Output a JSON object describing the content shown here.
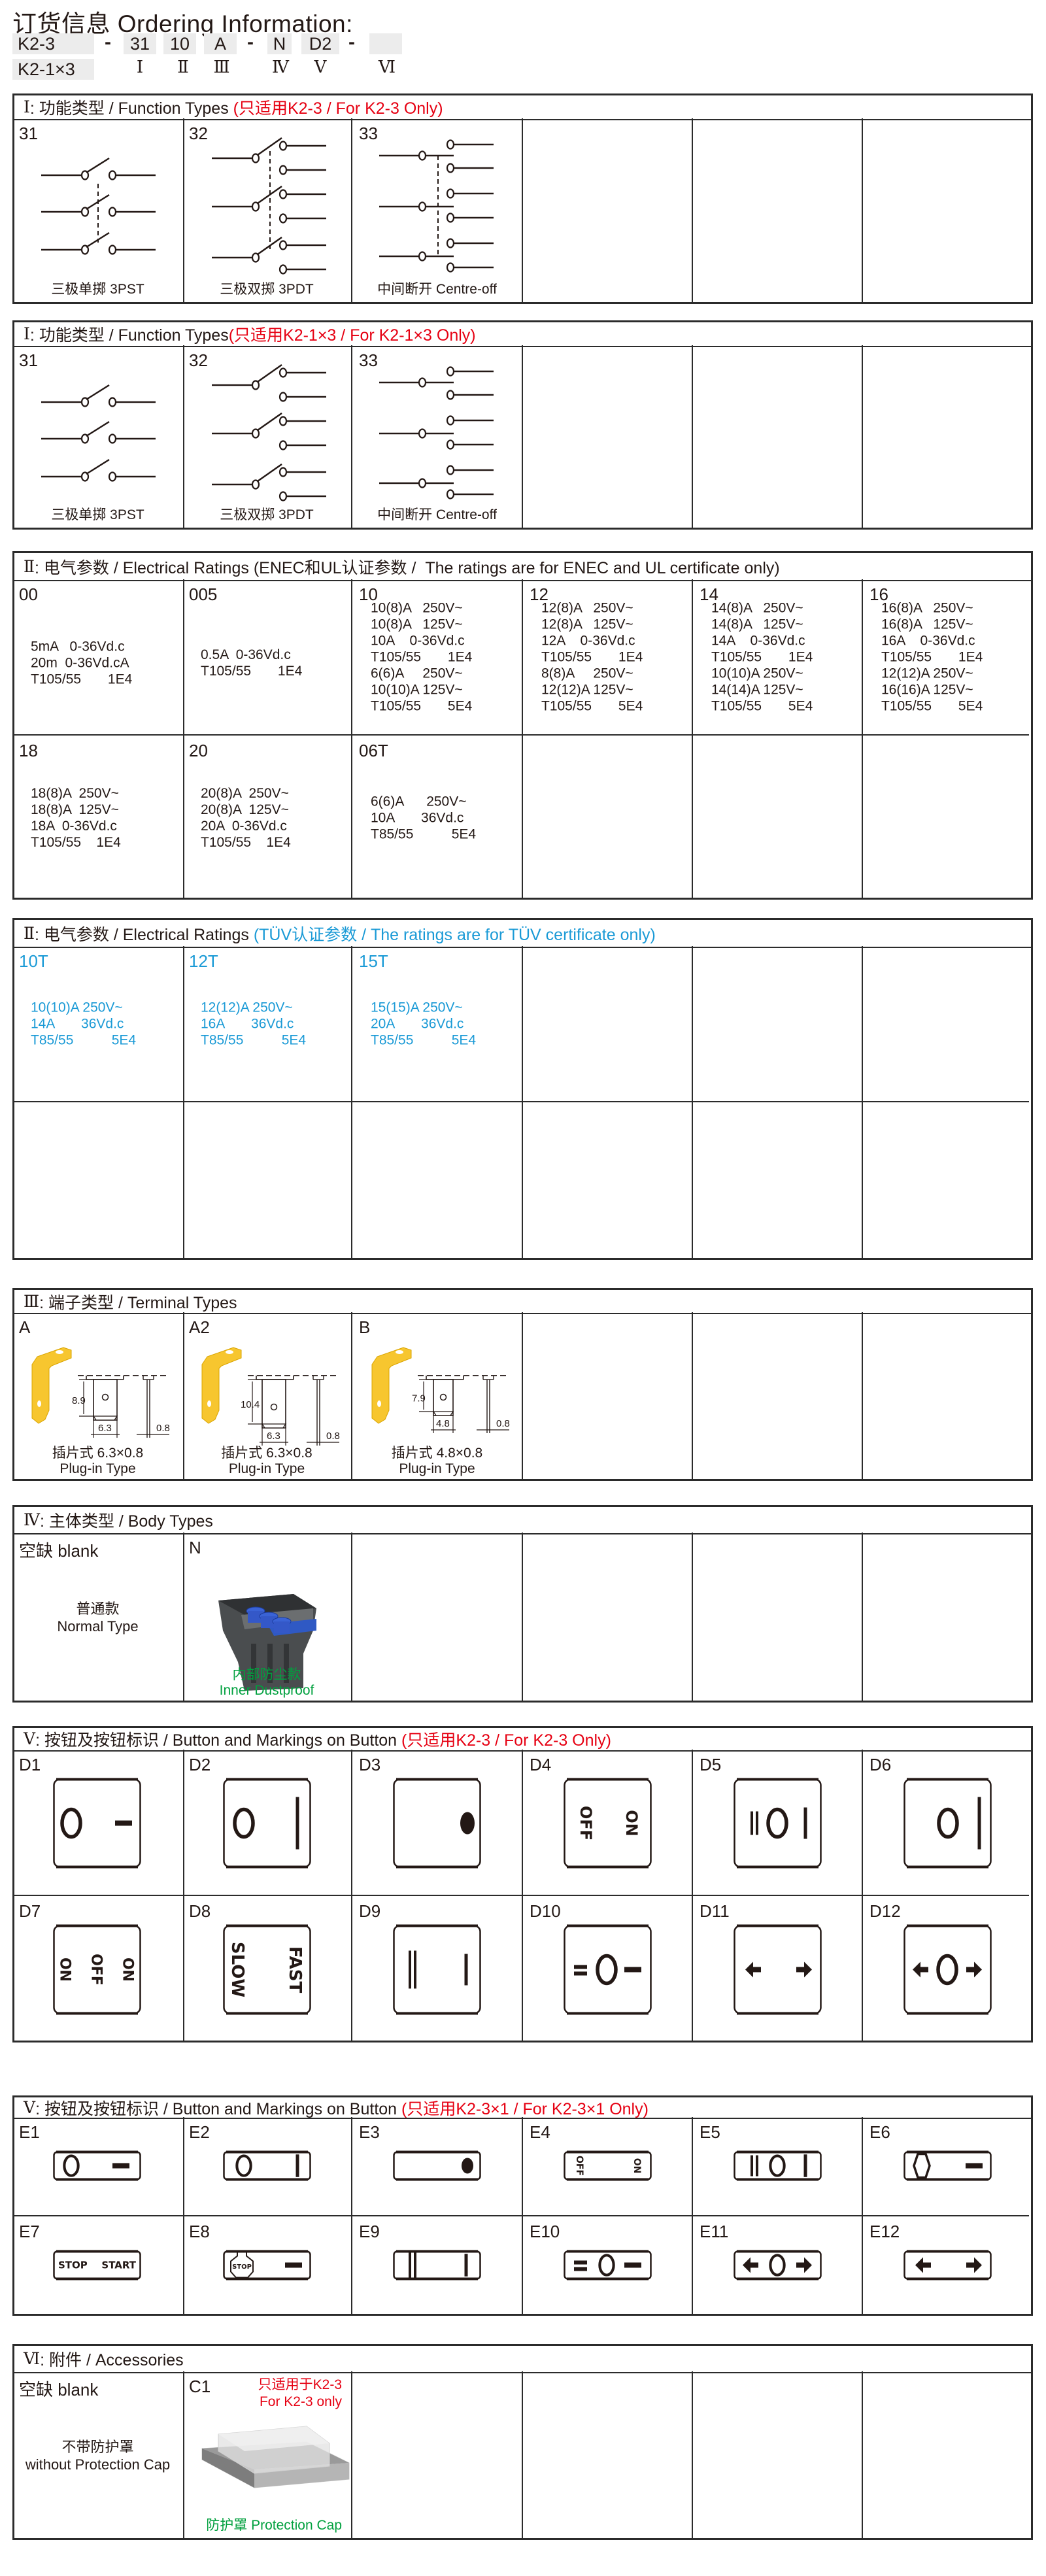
{
  "title": "订货信息 Ordering Information:",
  "colors": {
    "red": "#e60012",
    "blue": "#1a9ad6",
    "green": "#00a03e",
    "text": "#231815",
    "box": "#ececec",
    "terminal": "#f7c62f"
  },
  "order_code": {
    "series": [
      "K2-3",
      "K2-1×3"
    ],
    "separator": "-",
    "parts": [
      {
        "value": "31",
        "roman": "Ⅰ"
      },
      {
        "value": "10",
        "roman": "Ⅱ"
      },
      {
        "value": "A",
        "roman": "Ⅲ"
      },
      {
        "value": "N",
        "roman": "Ⅳ"
      },
      {
        "value": "D2",
        "roman": "Ⅴ"
      },
      {
        "value": "",
        "roman": "Ⅵ"
      }
    ]
  },
  "sections": [
    {
      "roman": "Ⅰ",
      "title": ": 功能类型 / Function Types ",
      "note": "(只适用K2-3 / For K2-3 Only)",
      "note_color": "#e60012",
      "rows": [
        [
          {
            "code": "31",
            "diagram": "3pst-diagram",
            "caption": [
              "三极单掷 3PST"
            ]
          },
          {
            "code": "32",
            "diagram": "3pdt-diagram",
            "caption": [
              "三极双掷 3PDT"
            ]
          },
          {
            "code": "33",
            "diagram": "centre-off-diagram",
            "caption": [
              "中间断开  Centre-off"
            ]
          },
          {},
          {},
          {}
        ]
      ]
    },
    {
      "roman": "Ⅰ",
      "title": ": 功能类型 / Function Types",
      "note": "(只适用K2-1×3 / For K2-1×3 Only)",
      "note_color": "#e60012",
      "rows": [
        [
          {
            "code": "31",
            "diagram": "3pst-diagram-plain",
            "caption": [
              "三极单掷 3PST"
            ]
          },
          {
            "code": "32",
            "diagram": "3pdt-diagram-plain",
            "caption": [
              "三极双掷 3PDT"
            ]
          },
          {
            "code": "33",
            "diagram": "centre-off-diagram-plain",
            "caption": [
              "中间断开  Centre-off"
            ]
          },
          {},
          {},
          {}
        ]
      ]
    },
    {
      "roman": "Ⅱ",
      "title": ": 电气参数 / Electrical Ratings ",
      "note": "(ENEC和UL认证参数 /  The ratings are for ENEC and UL certificate only)",
      "note_color": "#231815",
      "rows": [
        [
          {
            "code": "00",
            "lines": [
              "5mA   0-36Vd.c",
              "20m  0-36Vd.cA",
              "T105/55       1E4"
            ],
            "low": true
          },
          {
            "code": "005",
            "lines": [
              "0.5A  0-36Vd.c",
              "T105/55       1E4"
            ],
            "low": true
          },
          {
            "code": "10",
            "lines": [
              "10(8)A   250V~",
              "10(8)A   125V~",
              "10A    0-36Vd.c",
              "T105/55       1E4",
              "6(6)A     250V~",
              "10(10)A 125V~",
              "T105/55       5E4"
            ]
          },
          {
            "code": "12",
            "lines": [
              "12(8)A   250V~",
              "12(8)A   125V~",
              "12A    0-36Vd.c",
              "T105/55       1E4",
              "8(8)A     250V~",
              "12(12)A 125V~",
              "T105/55       5E4"
            ]
          },
          {
            "code": "14",
            "lines": [
              "14(8)A   250V~",
              "14(8)A   125V~",
              "14A    0-36Vd.c",
              "T105/55       1E4",
              "10(10)A 250V~",
              "14(14)A 125V~",
              "T105/55       5E4"
            ]
          },
          {
            "code": "16",
            "lines": [
              "16(8)A   250V~",
              "16(8)A   125V~",
              "16A    0-36Vd.c",
              "T105/55       1E4",
              "12(12)A 250V~",
              "16(16)A 125V~",
              "T105/55       5E4"
            ]
          }
        ],
        [
          {
            "code": "18",
            "lines": [
              "18(8)A  250V~",
              "18(8)A  125V~",
              "18A  0-36Vd.c",
              "T105/55    1E4"
            ]
          },
          {
            "code": "20",
            "lines": [
              "20(8)A  250V~",
              "20(8)A  125V~",
              "20A  0-36Vd.c",
              "T105/55    1E4"
            ]
          },
          {
            "code": "06T",
            "lines": [
              "6(6)A      250V~",
              "10A       36Vd.c",
              "T85/55          5E4"
            ]
          },
          {},
          {},
          {}
        ]
      ]
    },
    {
      "roman": "Ⅱ",
      "title": ": 电气参数 / Electrical Ratings ",
      "note": "(TÜV认证参数 / The ratings are for TÜV certificate only)",
      "note_color": "#1a9ad6",
      "text_color": "#1a9ad6",
      "rows": [
        [
          {
            "code": "10T",
            "lines": [
              "10(10)A 250V~",
              "14A       36Vd.c",
              "T85/55          5E4"
            ]
          },
          {
            "code": "12T",
            "lines": [
              "12(12)A 250V~",
              "16A       36Vd.c",
              "T85/55          5E4"
            ]
          },
          {
            "code": "15T",
            "lines": [
              "15(15)A 250V~",
              "20A       36Vd.c",
              "T85/55          5E4"
            ]
          },
          {},
          {},
          {}
        ],
        [
          {},
          {},
          {},
          {},
          {},
          {}
        ]
      ]
    },
    {
      "roman": "Ⅲ",
      "title": ": 端子类型 / Terminal Types",
      "note": "",
      "note_color": "#231815",
      "rows": [
        [
          {
            "code": "A",
            "terminal": {
              "style": "A",
              "height_dim": "8.9",
              "width_dim": "6.3",
              "thick_dim": "0.8"
            },
            "caption": [
              "插片式 6.3×0.8",
              "Plug-in Type"
            ]
          },
          {
            "code": "A2",
            "terminal": {
              "style": "A2",
              "height_dim": "10.4",
              "width_dim": "6.3",
              "thick_dim": "0.8"
            },
            "caption": [
              "插片式 6.3×0.8",
              "Plug-in Type"
            ]
          },
          {
            "code": "B",
            "terminal": {
              "style": "B",
              "height_dim": "7.9",
              "width_dim": "4.8",
              "thick_dim": "0.8"
            },
            "caption": [
              "插片式 4.8×0.8",
              "Plug-in Type"
            ]
          },
          {},
          {},
          {}
        ]
      ]
    },
    {
      "roman": "Ⅳ",
      "title": ": 主体类型 / Body Types",
      "note": "",
      "note_color": "#231815",
      "rows": [
        [
          {
            "code": "空缺  blank",
            "center_caption": [
              "普通款",
              "Normal Type"
            ]
          },
          {
            "code": "N",
            "image": "dustproof-body-image",
            "caption": [
              "内部防尘款",
              "Inner Dustproof"
            ],
            "caption_color": "#00a03e"
          },
          {},
          {},
          {},
          {}
        ]
      ]
    },
    {
      "roman": "Ⅴ",
      "title": ": 按钮及按钮标识 / Button and Markings on Button ",
      "note": "(只适用K2-3 / For K2-3 Only)",
      "note_color": "#e60012",
      "rows": [
        [
          {
            "code": "D1",
            "marking": "o-dash"
          },
          {
            "code": "D2",
            "marking": "o-i"
          },
          {
            "code": "D3",
            "marking": "dot"
          },
          {
            "code": "D4",
            "marking": "off-on-vertical",
            "labels": [
              "OFF",
              "ON"
            ]
          },
          {
            "code": "D5",
            "marking": "ii-o-i"
          },
          {
            "code": "D6",
            "marking": "o-i-right"
          },
          {
            "code": "D7",
            "marking": "on-off-on-vertical",
            "labels": [
              "ON",
              "OFF",
              "ON"
            ]
          },
          {
            "code": "D8",
            "marking": "slow-fast-vertical",
            "labels": [
              "SLOW",
              "FAST"
            ]
          },
          {
            "code": "D9",
            "marking": "ii-i"
          },
          {
            "code": "D10",
            "marking": "eq-o-dash"
          },
          {
            "code": "D11",
            "marking": "arrow-left-right"
          },
          {
            "code": "D12",
            "marking": "arrow-o-arrow"
          }
        ]
      ]
    },
    {
      "roman": "Ⅴ",
      "title": ": 按钮及按钮标识 / Button and Markings on Button ",
      "note": "(只适用K2-3×1 / For K2-3×1 Only)",
      "note_color": "#e60012",
      "rows": [
        [
          {
            "code": "E1",
            "marking": "o-dash"
          },
          {
            "code": "E2",
            "marking": "o-i"
          },
          {
            "code": "E3",
            "marking": "dot"
          },
          {
            "code": "E4",
            "marking": "off-on-vertical",
            "labels": [
              "OFF",
              "ON"
            ]
          },
          {
            "code": "E5",
            "marking": "ii-o-i"
          },
          {
            "code": "E6",
            "marking": "hex-dash"
          },
          {
            "code": "E7",
            "marking": "stop-start-text",
            "labels": [
              "STOP",
              "START"
            ]
          },
          {
            "code": "E8",
            "marking": "stop-sign-dash",
            "labels": [
              "STOP"
            ]
          },
          {
            "code": "E9",
            "marking": "ii-i"
          },
          {
            "code": "E10",
            "marking": "eq-o-dash"
          },
          {
            "code": "E11",
            "marking": "arrow-o-arrow"
          },
          {
            "code": "E12",
            "marking": "arrow-left-right"
          }
        ]
      ]
    },
    {
      "roman": "Ⅵ",
      "title": ": 附件 / Accessories",
      "note": "",
      "note_color": "#231815",
      "rows": [
        [
          {
            "code": "空缺  blank",
            "center_caption": [
              "不带防护罩",
              "without Protection Cap"
            ]
          },
          {
            "code": "C1",
            "image": "protection-cap-image",
            "corner_note": [
              "只适用于K2-3",
              "For K2-3 only"
            ],
            "corner_note_color": "#e60012",
            "caption": [
              "防护罩  Protection Cap"
            ],
            "caption_color": "#00a03e"
          },
          {},
          {},
          {},
          {}
        ]
      ]
    }
  ]
}
